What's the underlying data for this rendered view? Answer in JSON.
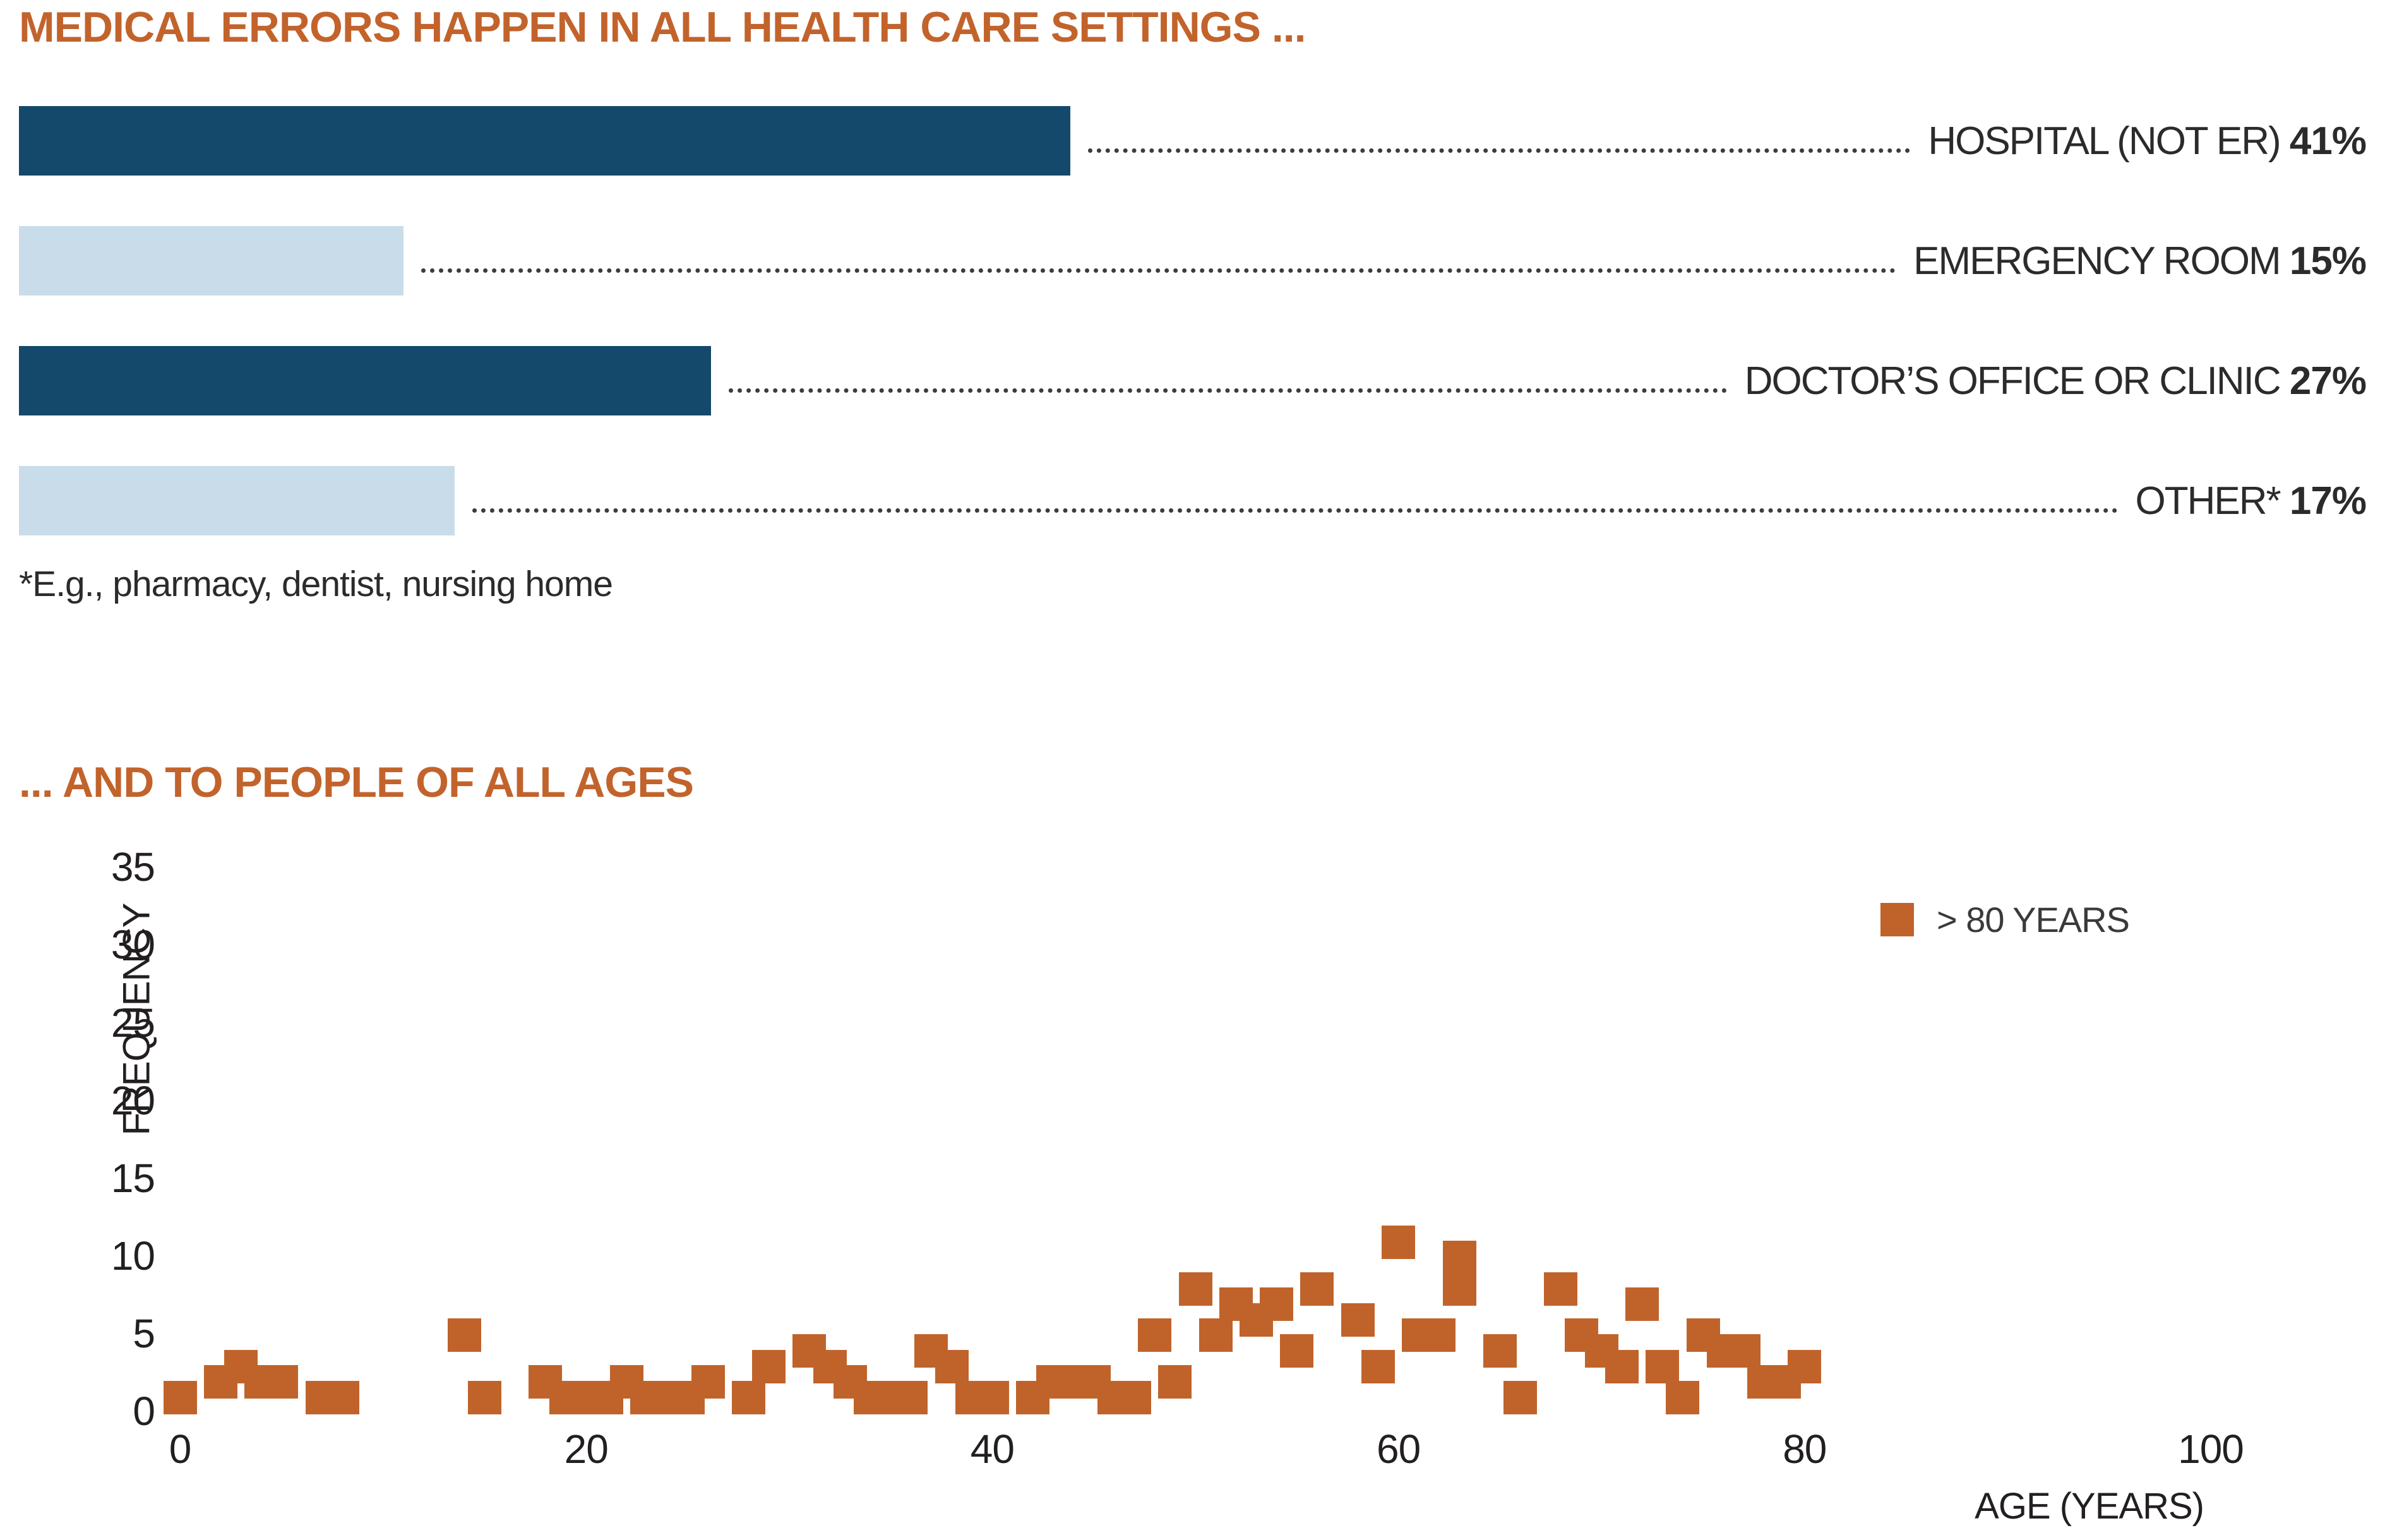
{
  "colors": {
    "title_orange": "#C2632C",
    "bar_dark_blue": "#14496B",
    "bar_light_blue": "#C9DCE9",
    "marker_orange": "#C0632B",
    "text_dark": "#2B2B2B"
  },
  "chart_data": [
    {
      "type": "bar",
      "title": "MEDICAL ERRORS HAPPEN IN ALL HEALTH CARE SETTINGS ...",
      "orientation": "horizontal",
      "value_suffix": "%",
      "bars": [
        {
          "label": "HOSPITAL (NOT ER)",
          "value": 41,
          "color": "#14496B"
        },
        {
          "label": "EMERGENCY ROOM",
          "value": 15,
          "color": "#C9DCE9"
        },
        {
          "label": "DOCTOR’S OFFICE OR CLINIC",
          "value": 27,
          "color": "#14496B"
        },
        {
          "label": "OTHER*",
          "value": 17,
          "color": "#C9DCE9"
        }
      ],
      "footnote": "*E.g., pharmacy, dentist, nursing home",
      "leader_style": "dotted"
    },
    {
      "type": "scatter",
      "title": "... AND TO PEOPLE OF ALL AGES",
      "xlabel": "AGE (YEARS)",
      "ylabel": "FREQUENCY",
      "xlim": [
        0,
        108
      ],
      "ylim": [
        0,
        35
      ],
      "xticks": [
        0,
        20,
        40,
        60,
        80,
        100
      ],
      "yticks": [
        0,
        5,
        10,
        15,
        20,
        25,
        30,
        35
      ],
      "grid": false,
      "axis_lines": false,
      "legend": {
        "label": "> 80 YEARS",
        "position": "upper right",
        "marker_color": "#C0632B"
      },
      "marker": {
        "shape": "square",
        "color": "#C0632B"
      },
      "points": [
        [
          0,
          1
        ],
        [
          2,
          2
        ],
        [
          3,
          3
        ],
        [
          4,
          2
        ],
        [
          5,
          2
        ],
        [
          7,
          1
        ],
        [
          8,
          1
        ],
        [
          14,
          5
        ],
        [
          15,
          1
        ],
        [
          18,
          2
        ],
        [
          19,
          1
        ],
        [
          20,
          1
        ],
        [
          21,
          1
        ],
        [
          22,
          2
        ],
        [
          23,
          1
        ],
        [
          24,
          1
        ],
        [
          25,
          1
        ],
        [
          26,
          2
        ],
        [
          28,
          1
        ],
        [
          29,
          3
        ],
        [
          31,
          4
        ],
        [
          32,
          3
        ],
        [
          33,
          2
        ],
        [
          34,
          1
        ],
        [
          35,
          1
        ],
        [
          36,
          1
        ],
        [
          37,
          4
        ],
        [
          38,
          3
        ],
        [
          39,
          1
        ],
        [
          40,
          1
        ],
        [
          42,
          1
        ],
        [
          43,
          2
        ],
        [
          44,
          2
        ],
        [
          45,
          2
        ],
        [
          46,
          1
        ],
        [
          47,
          1
        ],
        [
          48,
          5
        ],
        [
          49,
          2
        ],
        [
          50,
          8
        ],
        [
          51,
          5
        ],
        [
          52,
          7
        ],
        [
          53,
          6
        ],
        [
          54,
          7
        ],
        [
          55,
          4
        ],
        [
          56,
          8
        ],
        [
          58,
          6
        ],
        [
          59,
          3
        ],
        [
          60,
          11
        ],
        [
          61,
          5
        ],
        [
          62,
          5
        ],
        [
          63,
          10
        ],
        [
          63,
          8
        ],
        [
          65,
          4
        ],
        [
          66,
          1
        ],
        [
          68,
          8
        ],
        [
          69,
          5
        ],
        [
          70,
          4
        ],
        [
          71,
          3
        ],
        [
          72,
          7
        ],
        [
          73,
          3
        ],
        [
          74,
          1
        ],
        [
          75,
          5
        ],
        [
          76,
          4
        ],
        [
          77,
          4
        ],
        [
          78,
          2
        ],
        [
          79,
          2
        ],
        [
          80,
          3
        ]
      ]
    }
  ]
}
